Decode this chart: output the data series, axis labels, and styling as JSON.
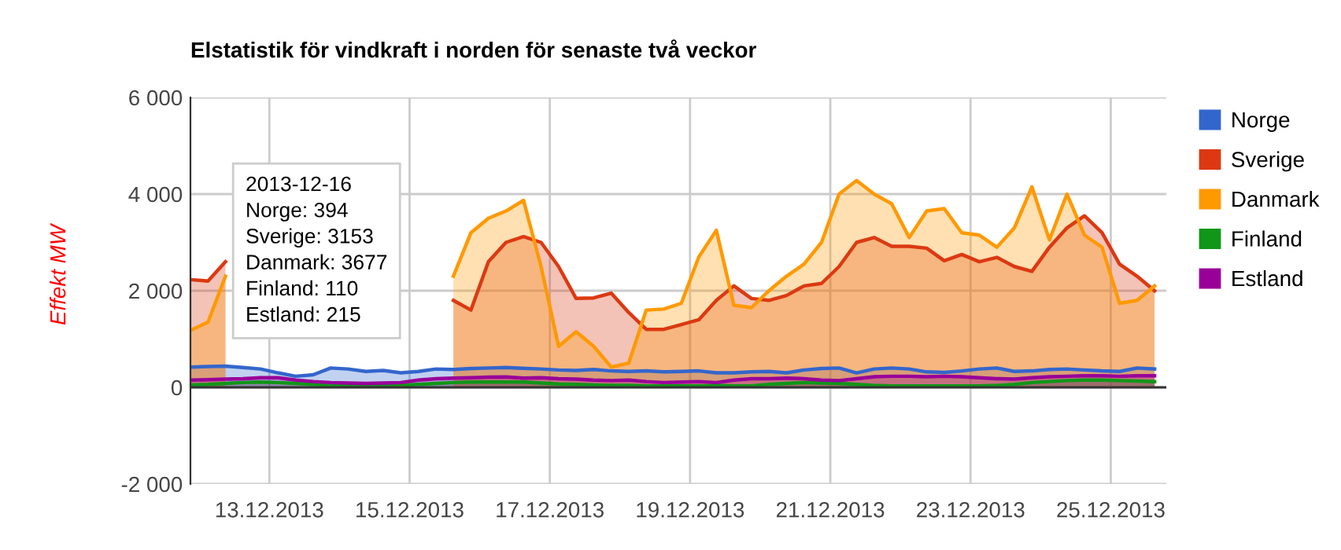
{
  "chart_data": {
    "type": "area",
    "title": "Elstatistik för vindkraft i norden för senaste två veckor",
    "ylabel": "Effekt MW",
    "x": [
      "2013-12-11T21:00",
      "2013-12-12T03:00",
      "2013-12-12T09:00",
      "2013-12-12T15:00",
      "2013-12-12T21:00",
      "2013-12-13T03:00",
      "2013-12-13T09:00",
      "2013-12-13T15:00",
      "2013-12-13T21:00",
      "2013-12-14T03:00",
      "2013-12-14T09:00",
      "2013-12-14T15:00",
      "2013-12-14T21:00",
      "2013-12-15T03:00",
      "2013-12-15T09:00",
      "2013-12-15T15:00",
      "2013-12-15T21:00",
      "2013-12-16T03:00",
      "2013-12-16T09:00",
      "2013-12-16T15:00",
      "2013-12-16T21:00",
      "2013-12-17T03:00",
      "2013-12-17T09:00",
      "2013-12-17T15:00",
      "2013-12-17T21:00",
      "2013-12-18T03:00",
      "2013-12-18T09:00",
      "2013-12-18T15:00",
      "2013-12-18T21:00",
      "2013-12-19T03:00",
      "2013-12-19T09:00",
      "2013-12-19T15:00",
      "2013-12-19T21:00",
      "2013-12-20T03:00",
      "2013-12-20T09:00",
      "2013-12-20T15:00",
      "2013-12-20T21:00",
      "2013-12-21T03:00",
      "2013-12-21T09:00",
      "2013-12-21T15:00",
      "2013-12-21T21:00",
      "2013-12-22T03:00",
      "2013-12-22T09:00",
      "2013-12-22T15:00",
      "2013-12-22T21:00",
      "2013-12-23T03:00",
      "2013-12-23T09:00",
      "2013-12-23T15:00",
      "2013-12-23T21:00",
      "2013-12-24T03:00",
      "2013-12-24T09:00",
      "2013-12-24T15:00",
      "2013-12-24T21:00",
      "2013-12-25T03:00",
      "2013-12-25T09:00",
      "2013-12-25T15:00"
    ],
    "series": [
      {
        "name": "Norge",
        "color": "#3366cc",
        "values": [
          420,
          430,
          440,
          410,
          380,
          300,
          230,
          260,
          400,
          380,
          330,
          350,
          300,
          330,
          380,
          370,
          390,
          400,
          410,
          394,
          380,
          360,
          350,
          370,
          340,
          330,
          340,
          320,
          330,
          340,
          300,
          300,
          320,
          330,
          300,
          360,
          390,
          400,
          300,
          380,
          400,
          380,
          320,
          310,
          340,
          380,
          400,
          330,
          340,
          370,
          380,
          360,
          340,
          330,
          400,
          380
        ]
      },
      {
        "name": "Sverige",
        "color": "#dc3912",
        "values": [
          2230,
          2200,
          2600,
          null,
          null,
          null,
          null,
          null,
          null,
          null,
          null,
          null,
          null,
          null,
          null,
          1800,
          1600,
          2600,
          3000,
          3120,
          3000,
          2500,
          1840,
          1850,
          1950,
          1550,
          1200,
          1200,
          1300,
          1400,
          1800,
          2100,
          1840,
          1800,
          1900,
          2100,
          2150,
          2500,
          3000,
          3100,
          2920,
          2920,
          2880,
          2620,
          2750,
          2600,
          2690,
          2500,
          2400,
          2900,
          3300,
          3550,
          3200,
          2550,
          2300,
          2000
        ]
      },
      {
        "name": "Danmark",
        "color": "#ff9900",
        "values": [
          1180,
          1350,
          2300,
          null,
          null,
          null,
          null,
          null,
          null,
          null,
          null,
          null,
          null,
          null,
          null,
          2300,
          3200,
          3500,
          3650,
          3870,
          2500,
          850,
          1150,
          850,
          420,
          500,
          1600,
          1620,
          1740,
          2700,
          3250,
          1700,
          1650,
          2000,
          2300,
          2550,
          3000,
          4000,
          4280,
          4000,
          3800,
          3100,
          3650,
          3700,
          3200,
          3150,
          2900,
          3300,
          4150,
          3050,
          4000,
          3150,
          2900,
          1740,
          1800,
          2100
        ]
      },
      {
        "name": "Finland",
        "color": "#109618",
        "values": [
          50,
          60,
          80,
          100,
          110,
          100,
          80,
          60,
          40,
          30,
          30,
          30,
          40,
          60,
          80,
          100,
          110,
          110,
          110,
          110,
          90,
          70,
          60,
          50,
          40,
          40,
          30,
          30,
          30,
          30,
          40,
          30,
          30,
          60,
          80,
          100,
          90,
          80,
          60,
          40,
          30,
          30,
          30,
          30,
          30,
          30,
          40,
          60,
          100,
          120,
          140,
          150,
          150,
          140,
          130,
          120
        ]
      },
      {
        "name": "Estland",
        "color": "#990099",
        "values": [
          150,
          160,
          170,
          180,
          200,
          200,
          150,
          120,
          100,
          90,
          80,
          90,
          100,
          150,
          180,
          190,
          200,
          210,
          215,
          190,
          200,
          180,
          170,
          150,
          140,
          150,
          120,
          100,
          110,
          120,
          100,
          150,
          180,
          180,
          190,
          180,
          150,
          140,
          180,
          220,
          230,
          230,
          220,
          230,
          220,
          200,
          180,
          170,
          200,
          220,
          230,
          240,
          240,
          230,
          240,
          240
        ]
      }
    ],
    "xlim": [
      "2013-12-11T21:00",
      "2013-12-25T19:00"
    ],
    "xticks": [
      {
        "value": "2013-12-13",
        "label": "13.12.2013"
      },
      {
        "value": "2013-12-15",
        "label": "15.12.2013"
      },
      {
        "value": "2013-12-17",
        "label": "17.12.2013"
      },
      {
        "value": "2013-12-19",
        "label": "19.12.2013"
      },
      {
        "value": "2013-12-21",
        "label": "21.12.2013"
      },
      {
        "value": "2013-12-23",
        "label": "23.12.2013"
      },
      {
        "value": "2013-12-25",
        "label": "25.12.2013"
      }
    ],
    "ylim": [
      -2000,
      6000
    ],
    "yticks": [
      {
        "value": -2000,
        "label": "-2 000"
      },
      {
        "value": 0,
        "label": "0"
      },
      {
        "value": 2000,
        "label": "2 000"
      },
      {
        "value": 4000,
        "label": "4 000"
      },
      {
        "value": 6000,
        "label": "6 000"
      }
    ],
    "grid": true,
    "legend": "right",
    "annotations": [
      "2013-12-16\nNorge: 394\nSverige: 3153\nDanmark: 3677\nFinland: 110\nEstland: 215"
    ]
  }
}
